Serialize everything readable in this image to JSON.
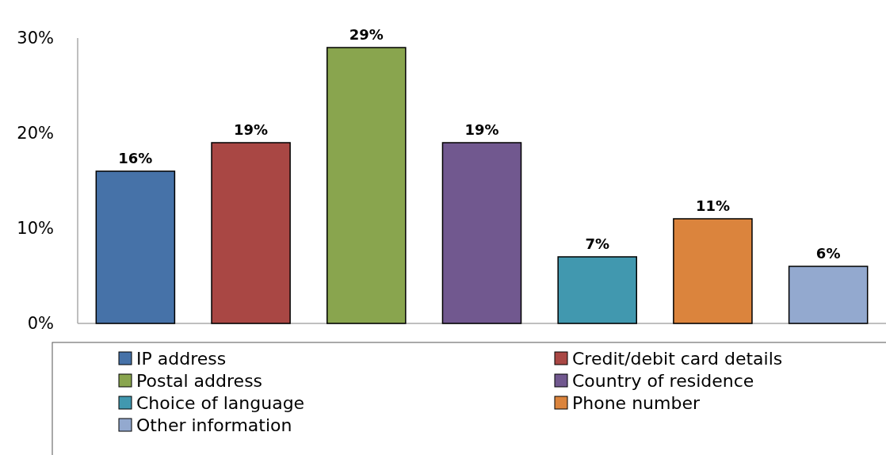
{
  "chart_data": {
    "type": "bar",
    "categories": [
      null,
      null,
      null,
      null,
      null,
      null,
      null
    ],
    "series": [
      {
        "name": "IP address",
        "color": "#4672a8",
        "values": [
          16,
          null,
          null,
          null,
          null,
          null,
          null
        ],
        "value_labels": [
          "16%",
          null,
          null,
          null,
          null,
          null,
          null
        ]
      },
      {
        "name": "Credit/debit card details",
        "color": "#a94744",
        "values": [
          null,
          19,
          null,
          null,
          null,
          null,
          null
        ],
        "value_labels": [
          null,
          "19%",
          null,
          null,
          null,
          null,
          null
        ]
      },
      {
        "name": "Postal address",
        "color": "#89a54e",
        "values": [
          null,
          null,
          29,
          null,
          null,
          null,
          null
        ],
        "value_labels": [
          null,
          null,
          "29%",
          null,
          null,
          null,
          null
        ]
      },
      {
        "name": "Country of residence",
        "color": "#71588f",
        "values": [
          null,
          null,
          null,
          19,
          null,
          null,
          null
        ],
        "value_labels": [
          null,
          null,
          null,
          "19%",
          null,
          null,
          null
        ]
      },
      {
        "name": "Choice of language",
        "color": "#4198af",
        "values": [
          null,
          null,
          null,
          null,
          7,
          null,
          null
        ],
        "value_labels": [
          null,
          null,
          null,
          null,
          "7%",
          null,
          null
        ]
      },
      {
        "name": "Phone number",
        "color": "#db843d",
        "values": [
          null,
          null,
          null,
          null,
          null,
          11,
          null
        ],
        "value_labels": [
          null,
          null,
          null,
          null,
          null,
          "11%",
          null
        ]
      },
      {
        "name": "Other information",
        "color": "#93a9cf",
        "values": [
          null,
          null,
          null,
          null,
          null,
          null,
          6
        ],
        "value_labels": [
          null,
          null,
          null,
          null,
          null,
          null,
          "6%"
        ]
      }
    ],
    "stacked": true,
    "ylim": [
      0,
      30
    ],
    "yticks": [
      {
        "value": 0,
        "label": "0%"
      },
      {
        "value": 10,
        "label": "10%"
      },
      {
        "value": 20,
        "label": "20%"
      },
      {
        "value": 30,
        "label": "30%"
      }
    ],
    "tick_labels": "y",
    "grid": false,
    "legend": "bottom"
  }
}
